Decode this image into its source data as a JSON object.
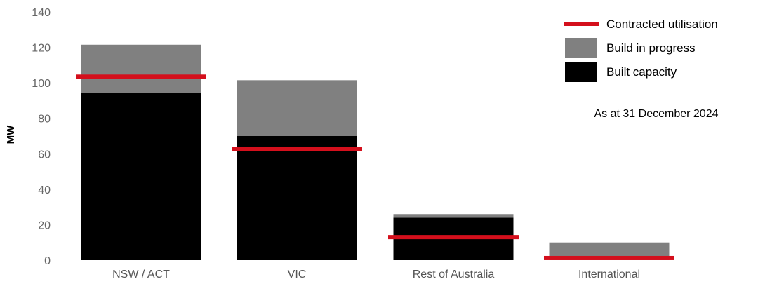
{
  "chart_data": {
    "type": "bar",
    "stacked": true,
    "categories": [
      "NSW / ACT",
      "VIC",
      "Rest of Australia",
      "International"
    ],
    "series": [
      {
        "name": "Built capacity",
        "values": [
          94.5,
          70,
          24,
          0
        ],
        "color": "#000000"
      },
      {
        "name": "Build in progress",
        "values": [
          27,
          31.5,
          2,
          10
        ],
        "color": "#808080"
      }
    ],
    "line_marker": {
      "name": "Contracted utilisation",
      "values": [
        103.5,
        62.5,
        13,
        1.2
      ],
      "color": "#d40f1c"
    },
    "ylabel": "MW",
    "xlabel": "",
    "ylim": [
      0,
      140
    ],
    "yticks": [
      0,
      20,
      40,
      60,
      80,
      100,
      120,
      140
    ],
    "grid": false,
    "legend": {
      "placement": "top-right",
      "items": [
        {
          "label": "Contracted utilisation",
          "kind": "line",
          "color": "#d40f1c"
        },
        {
          "label": "Build in progress",
          "kind": "box",
          "color": "#808080"
        },
        {
          "label": "Built capacity",
          "kind": "box",
          "color": "#000000"
        }
      ]
    },
    "annotation": "As at 31 December 2024"
  }
}
